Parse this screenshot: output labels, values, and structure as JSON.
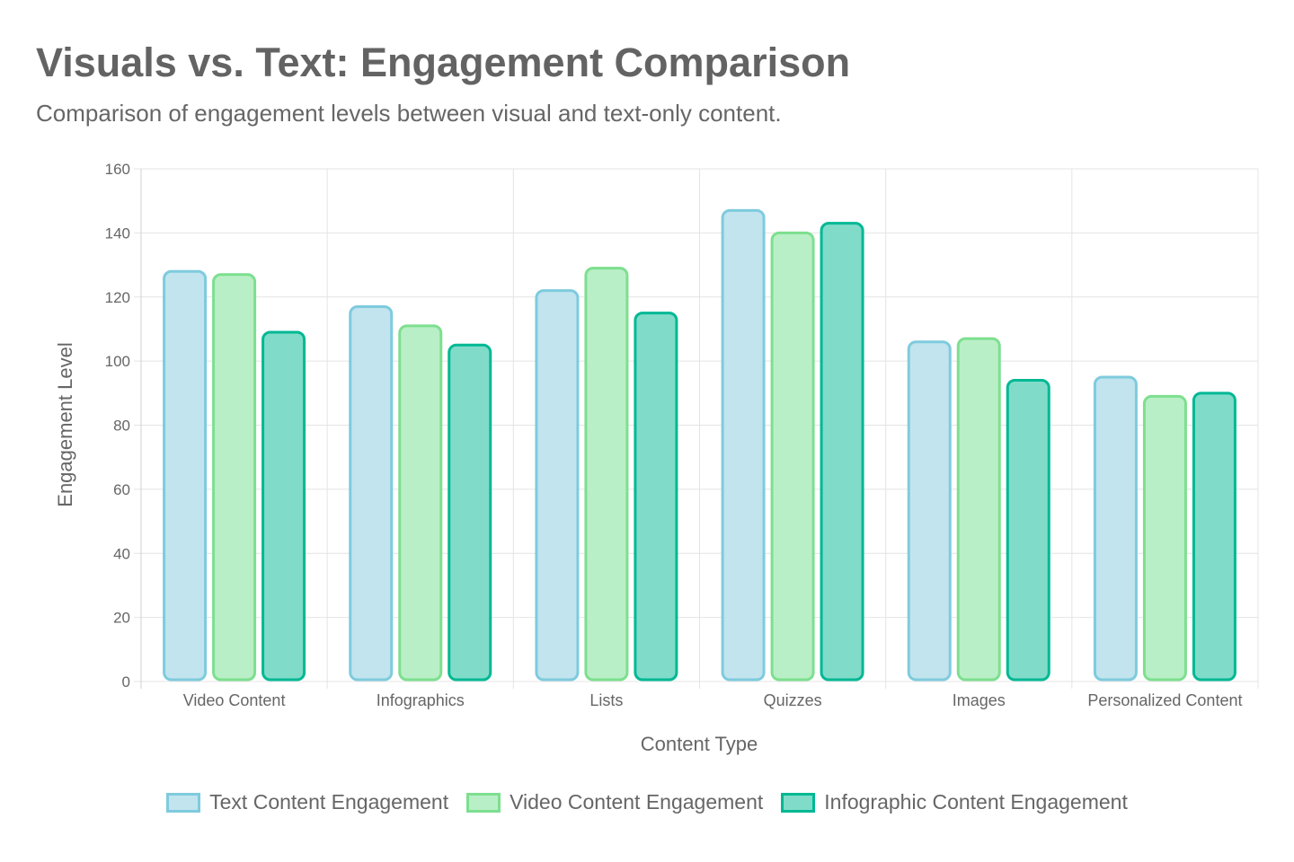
{
  "header": {
    "title": "Visuals vs. Text: Engagement Comparison",
    "subtitle": "Comparison of engagement levels between visual and text-only content."
  },
  "chart_data": {
    "type": "bar",
    "title": "Visuals vs. Text: Engagement Comparison",
    "subtitle": "Comparison of engagement levels between visual and text-only content.",
    "xlabel": "Content Type",
    "ylabel": "Engagement Level",
    "ylim": [
      0,
      160
    ],
    "yticks": [
      0,
      20,
      40,
      60,
      80,
      100,
      120,
      140,
      160
    ],
    "grid": true,
    "legend_position": "bottom",
    "categories": [
      "Video Content",
      "Infographics",
      "Lists",
      "Quizzes",
      "Images",
      "Personalized Content"
    ],
    "series": [
      {
        "name": "Text Content Engagement",
        "values": [
          128,
          117,
          122,
          147,
          106,
          95
        ],
        "border": "#7ecbdd",
        "fill": "#c1e4ee"
      },
      {
        "name": "Video Content Engagement",
        "values": [
          127,
          111,
          129,
          140,
          107,
          89
        ],
        "border": "#7ddf8f",
        "fill": "#b9efc6"
      },
      {
        "name": "Infographic Content Engagement",
        "values": [
          109,
          105,
          115,
          143,
          94,
          90
        ],
        "border": "#00b894",
        "fill": "#80dcc9"
      }
    ]
  }
}
